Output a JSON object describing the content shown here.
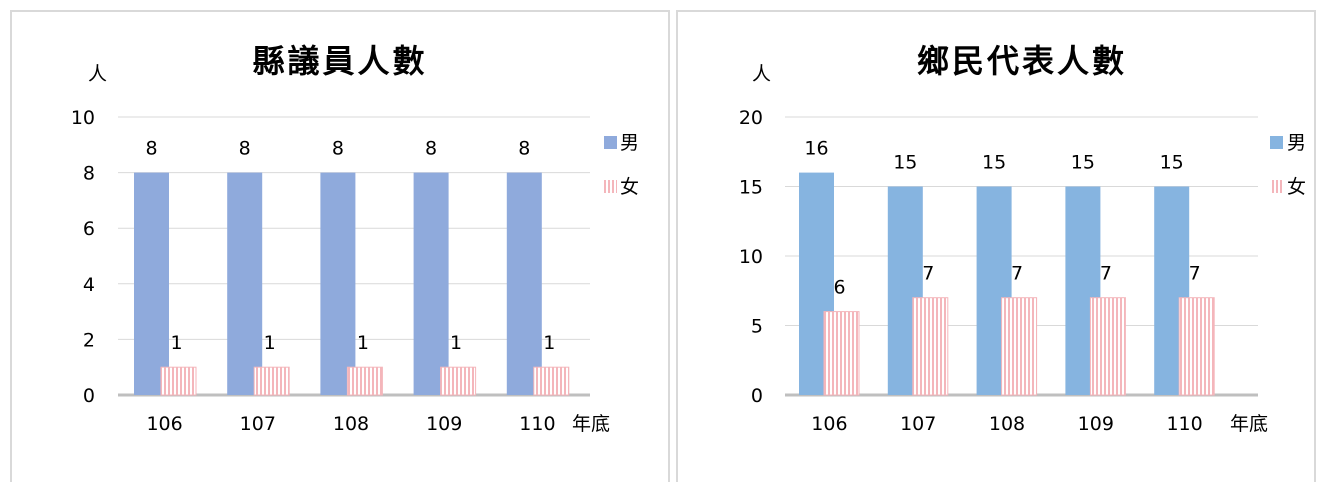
{
  "colors": {
    "male": "#8faadc",
    "male2": "#86b4e0",
    "female": "#f4b6bb",
    "grid": "#d9d9d9",
    "axis": "#bfbfbf"
  },
  "charts": [
    {
      "title": "縣議員人數",
      "ylabel": "人",
      "xlabel": "年底",
      "legend": [
        "男",
        "女"
      ]
    },
    {
      "title": "鄉民代表人數",
      "ylabel": "人",
      "xlabel": "年底",
      "legend": [
        "男",
        "女"
      ]
    }
  ],
  "chart_data": [
    {
      "type": "bar",
      "title": "縣議員人數",
      "ylabel": "人",
      "xlabel": "年底",
      "categories": [
        "106",
        "107",
        "108",
        "109",
        "110"
      ],
      "series": [
        {
          "name": "男",
          "values": [
            8,
            8,
            8,
            8,
            8
          ]
        },
        {
          "name": "女",
          "values": [
            1,
            1,
            1,
            1,
            1
          ]
        }
      ],
      "ylim": [
        0,
        10
      ],
      "yticks": [
        0,
        2,
        4,
        6,
        8,
        10
      ],
      "grid": true,
      "legend_position": "right"
    },
    {
      "type": "bar",
      "title": "鄉民代表人數",
      "ylabel": "人",
      "xlabel": "年底",
      "categories": [
        "106",
        "107",
        "108",
        "109",
        "110"
      ],
      "series": [
        {
          "name": "男",
          "values": [
            16,
            15,
            15,
            15,
            15
          ]
        },
        {
          "name": "女",
          "values": [
            6,
            7,
            7,
            7,
            7
          ]
        }
      ],
      "ylim": [
        0,
        20
      ],
      "yticks": [
        0,
        5,
        10,
        15,
        20
      ],
      "grid": true,
      "legend_position": "right"
    }
  ]
}
